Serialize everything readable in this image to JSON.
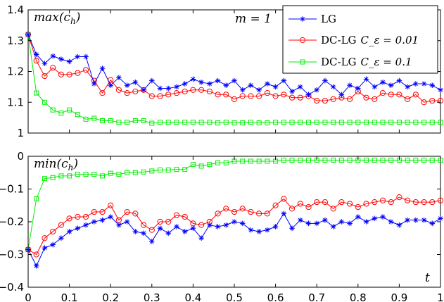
{
  "chart_data": [
    {
      "type": "line",
      "title": "",
      "panel_label": "max(c_h)",
      "annotation": "m = 1",
      "xlabel": "",
      "ylabel": "",
      "xlim": [
        0,
        1
      ],
      "ylim": [
        1,
        1.4
      ],
      "xticks": [
        0,
        0.1,
        0.2,
        0.3,
        0.4,
        0.5,
        0.6,
        0.7,
        0.8,
        0.9,
        1
      ],
      "yticks": [
        1,
        1.1,
        1.2,
        1.3,
        1.4
      ],
      "ytick_labels": [
        "1",
        "1.1",
        "1.2",
        "1.3",
        "1.4"
      ],
      "legend_position": "top-right",
      "legend": [
        {
          "main": "LG",
          "suffix": ""
        },
        {
          "main": "DC-LG",
          "suffix": "C_ε = 0.01"
        },
        {
          "main": "DC-LG",
          "suffix": "C_ε = 0.1"
        }
      ],
      "x": [
        0,
        0.02,
        0.04,
        0.06,
        0.08,
        0.1,
        0.12,
        0.14,
        0.16,
        0.18,
        0.2,
        0.22,
        0.24,
        0.26,
        0.28,
        0.3,
        0.32,
        0.34,
        0.36,
        0.38,
        0.4,
        0.42,
        0.44,
        0.46,
        0.48,
        0.5,
        0.52,
        0.54,
        0.56,
        0.58,
        0.6,
        0.62,
        0.64,
        0.66,
        0.68,
        0.7,
        0.72,
        0.74,
        0.76,
        0.78,
        0.8,
        0.82,
        0.84,
        0.86,
        0.88,
        0.9,
        0.92,
        0.94,
        0.96,
        0.98,
        1.0
      ],
      "series": [
        {
          "name": "LG",
          "color": "#0000ff",
          "marker": "star",
          "values": [
            1.32,
            1.255,
            1.226,
            1.25,
            1.24,
            1.232,
            1.248,
            1.248,
            1.16,
            1.21,
            1.155,
            1.18,
            1.155,
            1.165,
            1.14,
            1.17,
            1.145,
            1.145,
            1.15,
            1.16,
            1.175,
            1.165,
            1.16,
            1.17,
            1.155,
            1.17,
            1.14,
            1.155,
            1.14,
            1.16,
            1.15,
            1.17,
            1.135,
            1.15,
            1.125,
            1.14,
            1.17,
            1.15,
            1.125,
            1.155,
            1.145,
            1.175,
            1.15,
            1.165,
            1.155,
            1.17,
            1.15,
            1.16,
            1.16,
            1.155,
            1.14
          ]
        },
        {
          "name": "DC-LG C_ε = 0.01",
          "color": "#ff0000",
          "marker": "circle",
          "values": [
            1.32,
            1.235,
            1.185,
            1.212,
            1.19,
            1.19,
            1.195,
            1.205,
            1.17,
            1.13,
            1.172,
            1.14,
            1.13,
            1.135,
            1.14,
            1.12,
            1.12,
            1.125,
            1.13,
            1.135,
            1.14,
            1.14,
            1.135,
            1.125,
            1.125,
            1.11,
            1.12,
            1.12,
            1.12,
            1.13,
            1.12,
            1.125,
            1.115,
            1.115,
            1.12,
            1.105,
            1.105,
            1.11,
            1.115,
            1.11,
            1.135,
            1.115,
            1.11,
            1.13,
            1.125,
            1.125,
            1.11,
            1.125,
            1.1,
            1.105,
            1.105
          ]
        },
        {
          "name": "DC-LG C_ε = 0.1",
          "color": "#00ee00",
          "marker": "square",
          "values": [
            1.32,
            1.13,
            1.1,
            1.075,
            1.065,
            1.075,
            1.06,
            1.045,
            1.048,
            1.04,
            1.04,
            1.035,
            1.035,
            1.04,
            1.04,
            1.032,
            1.035,
            1.035,
            1.035,
            1.035,
            1.035,
            1.035,
            1.035,
            1.033,
            1.035,
            1.033,
            1.033,
            1.035,
            1.033,
            1.033,
            1.035,
            1.035,
            1.035,
            1.035,
            1.035,
            1.035,
            1.035,
            1.035,
            1.035,
            1.035,
            1.035,
            1.035,
            1.035,
            1.035,
            1.035,
            1.035,
            1.035,
            1.035,
            1.035,
            1.035,
            1.035
          ]
        }
      ]
    },
    {
      "type": "line",
      "title": "",
      "panel_label": "min(c_h)",
      "xlabel": "t",
      "ylabel": "",
      "xlim": [
        0,
        1
      ],
      "ylim": [
        -0.4,
        0
      ],
      "xticks": [
        0,
        0.1,
        0.2,
        0.3,
        0.4,
        0.5,
        0.6,
        0.7,
        0.8,
        0.9,
        1
      ],
      "xtick_labels": [
        "0",
        "0.1",
        "0.2",
        "0.3",
        "0.4",
        "0.5",
        "0.6",
        "0.7",
        "0.8",
        "0.9",
        "1"
      ],
      "yticks": [
        -0.4,
        -0.3,
        -0.2,
        -0.1,
        0
      ],
      "ytick_labels": [
        "−0.4",
        "−0.3",
        "−0.2",
        "−0.1",
        "0"
      ],
      "x": [
        0,
        0.02,
        0.04,
        0.06,
        0.08,
        0.1,
        0.12,
        0.14,
        0.16,
        0.18,
        0.2,
        0.22,
        0.24,
        0.26,
        0.28,
        0.3,
        0.32,
        0.34,
        0.36,
        0.38,
        0.4,
        0.42,
        0.44,
        0.46,
        0.48,
        0.5,
        0.52,
        0.54,
        0.56,
        0.58,
        0.6,
        0.62,
        0.64,
        0.66,
        0.68,
        0.7,
        0.72,
        0.74,
        0.76,
        0.78,
        0.8,
        0.82,
        0.84,
        0.86,
        0.88,
        0.9,
        0.92,
        0.94,
        0.96,
        0.98,
        1.0
      ],
      "series": [
        {
          "name": "LG",
          "color": "#0000ff",
          "marker": "star",
          "values": [
            -0.285,
            -0.335,
            -0.28,
            -0.27,
            -0.25,
            -0.23,
            -0.22,
            -0.21,
            -0.2,
            -0.195,
            -0.185,
            -0.21,
            -0.2,
            -0.23,
            -0.235,
            -0.26,
            -0.22,
            -0.235,
            -0.215,
            -0.23,
            -0.22,
            -0.25,
            -0.21,
            -0.215,
            -0.21,
            -0.2,
            -0.205,
            -0.225,
            -0.23,
            -0.225,
            -0.215,
            -0.175,
            -0.22,
            -0.195,
            -0.205,
            -0.205,
            -0.195,
            -0.215,
            -0.2,
            -0.205,
            -0.185,
            -0.2,
            -0.19,
            -0.185,
            -0.2,
            -0.21,
            -0.195,
            -0.195,
            -0.195,
            -0.205,
            -0.19
          ]
        },
        {
          "name": "DC-LG C_ε = 0.01",
          "color": "#ff0000",
          "marker": "circle",
          "values": [
            -0.285,
            -0.3,
            -0.25,
            -0.23,
            -0.21,
            -0.19,
            -0.185,
            -0.185,
            -0.17,
            -0.17,
            -0.15,
            -0.195,
            -0.17,
            -0.175,
            -0.21,
            -0.225,
            -0.2,
            -0.2,
            -0.18,
            -0.185,
            -0.205,
            -0.21,
            -0.2,
            -0.175,
            -0.16,
            -0.17,
            -0.16,
            -0.17,
            -0.175,
            -0.175,
            -0.15,
            -0.13,
            -0.16,
            -0.145,
            -0.155,
            -0.14,
            -0.14,
            -0.16,
            -0.14,
            -0.145,
            -0.155,
            -0.145,
            -0.14,
            -0.135,
            -0.14,
            -0.125,
            -0.135,
            -0.14,
            -0.14,
            -0.14,
            -0.135
          ]
        },
        {
          "name": "DC-LG C_ε = 0.1",
          "color": "#00ee00",
          "marker": "square",
          "values": [
            -0.285,
            -0.13,
            -0.068,
            -0.065,
            -0.06,
            -0.06,
            -0.055,
            -0.055,
            -0.055,
            -0.06,
            -0.052,
            -0.055,
            -0.05,
            -0.05,
            -0.048,
            -0.045,
            -0.042,
            -0.042,
            -0.04,
            -0.04,
            -0.025,
            -0.03,
            -0.025,
            -0.02,
            -0.02,
            -0.015,
            -0.015,
            -0.015,
            -0.015,
            -0.015,
            -0.015,
            -0.012,
            -0.012,
            -0.012,
            -0.012,
            -0.012,
            -0.012,
            -0.012,
            -0.012,
            -0.012,
            -0.012,
            -0.012,
            -0.012,
            -0.012,
            -0.012,
            -0.012,
            -0.012,
            -0.012,
            -0.012,
            -0.012,
            -0.012
          ]
        }
      ]
    }
  ]
}
